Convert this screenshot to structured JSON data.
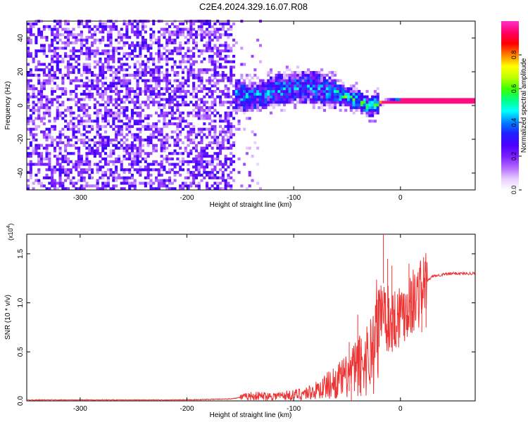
{
  "title": "C2E4.2024.329.16.07.R08",
  "chart_data": [
    {
      "type": "heatmap",
      "xlabel": "Height of straight line (km)",
      "ylabel": "Frequency (Hz)",
      "xlim": [
        -350,
        70
      ],
      "ylim": [
        -50,
        50
      ],
      "x_ticks": [
        -300,
        -200,
        -100,
        0
      ],
      "y_ticks": [
        -40,
        -20,
        0,
        20,
        40
      ],
      "grid": false,
      "colorbar": {
        "label": "Normalized spectral amplitude",
        "range": [
          0,
          1
        ],
        "ticks": [
          0.0,
          0.2,
          0.4,
          0.6,
          0.8
        ],
        "colormap": [
          "#ffffff",
          "#e6ccff",
          "#b266ff",
          "#7a1fff",
          "#4b00ff",
          "#2020ff",
          "#0080ff",
          "#00ffff",
          "#00ff80",
          "#40ff00",
          "#c0ff00",
          "#ffff00",
          "#ff8000",
          "#ff0000",
          "#ff0066",
          "#ff33cc"
        ]
      },
      "signal_track": [
        {
          "x": -240,
          "y": 2
        },
        {
          "x": -220,
          "y": 4
        },
        {
          "x": -200,
          "y": 3
        },
        {
          "x": -180,
          "y": 4
        },
        {
          "x": -160,
          "y": 6
        },
        {
          "x": -140,
          "y": 4
        },
        {
          "x": -120,
          "y": 8
        },
        {
          "x": -100,
          "y": 10
        },
        {
          "x": -80,
          "y": 10
        },
        {
          "x": -70,
          "y": 8
        },
        {
          "x": -60,
          "y": 6
        },
        {
          "x": -50,
          "y": 4
        },
        {
          "x": -40,
          "y": 2
        },
        {
          "x": -30,
          "y": -2
        },
        {
          "x": -20,
          "y": 1
        },
        {
          "x": 0,
          "y": 2
        },
        {
          "x": 20,
          "y": 2
        },
        {
          "x": 70,
          "y": 2
        }
      ]
    },
    {
      "type": "line",
      "xlabel": "Height of straight line (km)",
      "ylabel": "SNR (10 * v/v)",
      "y_multiplier": "(x10",
      "y_multiplier_exp": "4",
      "y_multiplier_close": ")",
      "xlim": [
        -350,
        70
      ],
      "ylim": [
        0,
        1.7
      ],
      "x_ticks": [
        -300,
        -200,
        -100,
        0
      ],
      "y_ticks": [
        0.0,
        0.5,
        1.0,
        1.5
      ],
      "grid": false,
      "series": [
        {
          "color": "#ee3333",
          "x": [
            -350,
            -300,
            -250,
            -200,
            -160,
            -140,
            -120,
            -100,
            -80,
            -60,
            -50,
            -40,
            -30,
            -25,
            -20,
            -18,
            -15,
            -10,
            -5,
            0,
            5,
            10,
            15,
            20,
            25,
            30,
            40,
            50,
            60,
            70
          ],
          "y": [
            0.01,
            0.01,
            0.01,
            0.01,
            0.02,
            0.05,
            0.05,
            0.06,
            0.1,
            0.2,
            0.25,
            0.35,
            0.45,
            0.55,
            0.8,
            0.95,
            0.9,
            0.8,
            0.85,
            0.9,
            0.95,
            1.0,
            1.05,
            1.15,
            1.22,
            1.27,
            1.29,
            1.3,
            1.3,
            1.3
          ]
        }
      ],
      "peaks": [
        {
          "x": -48,
          "y": 0.6
        },
        {
          "x": -46,
          "y": 0.45
        },
        {
          "x": -40,
          "y": 0.88
        },
        {
          "x": -37,
          "y": 0.55
        },
        {
          "x": -20,
          "y": 1.05
        },
        {
          "x": -16,
          "y": 1.7
        },
        {
          "x": -12,
          "y": 1.45
        },
        {
          "x": -8,
          "y": 1.38
        },
        {
          "x": 8,
          "y": 1.4
        },
        {
          "x": 20,
          "y": 1.2
        },
        {
          "x": 24,
          "y": 1.25
        }
      ]
    }
  ]
}
